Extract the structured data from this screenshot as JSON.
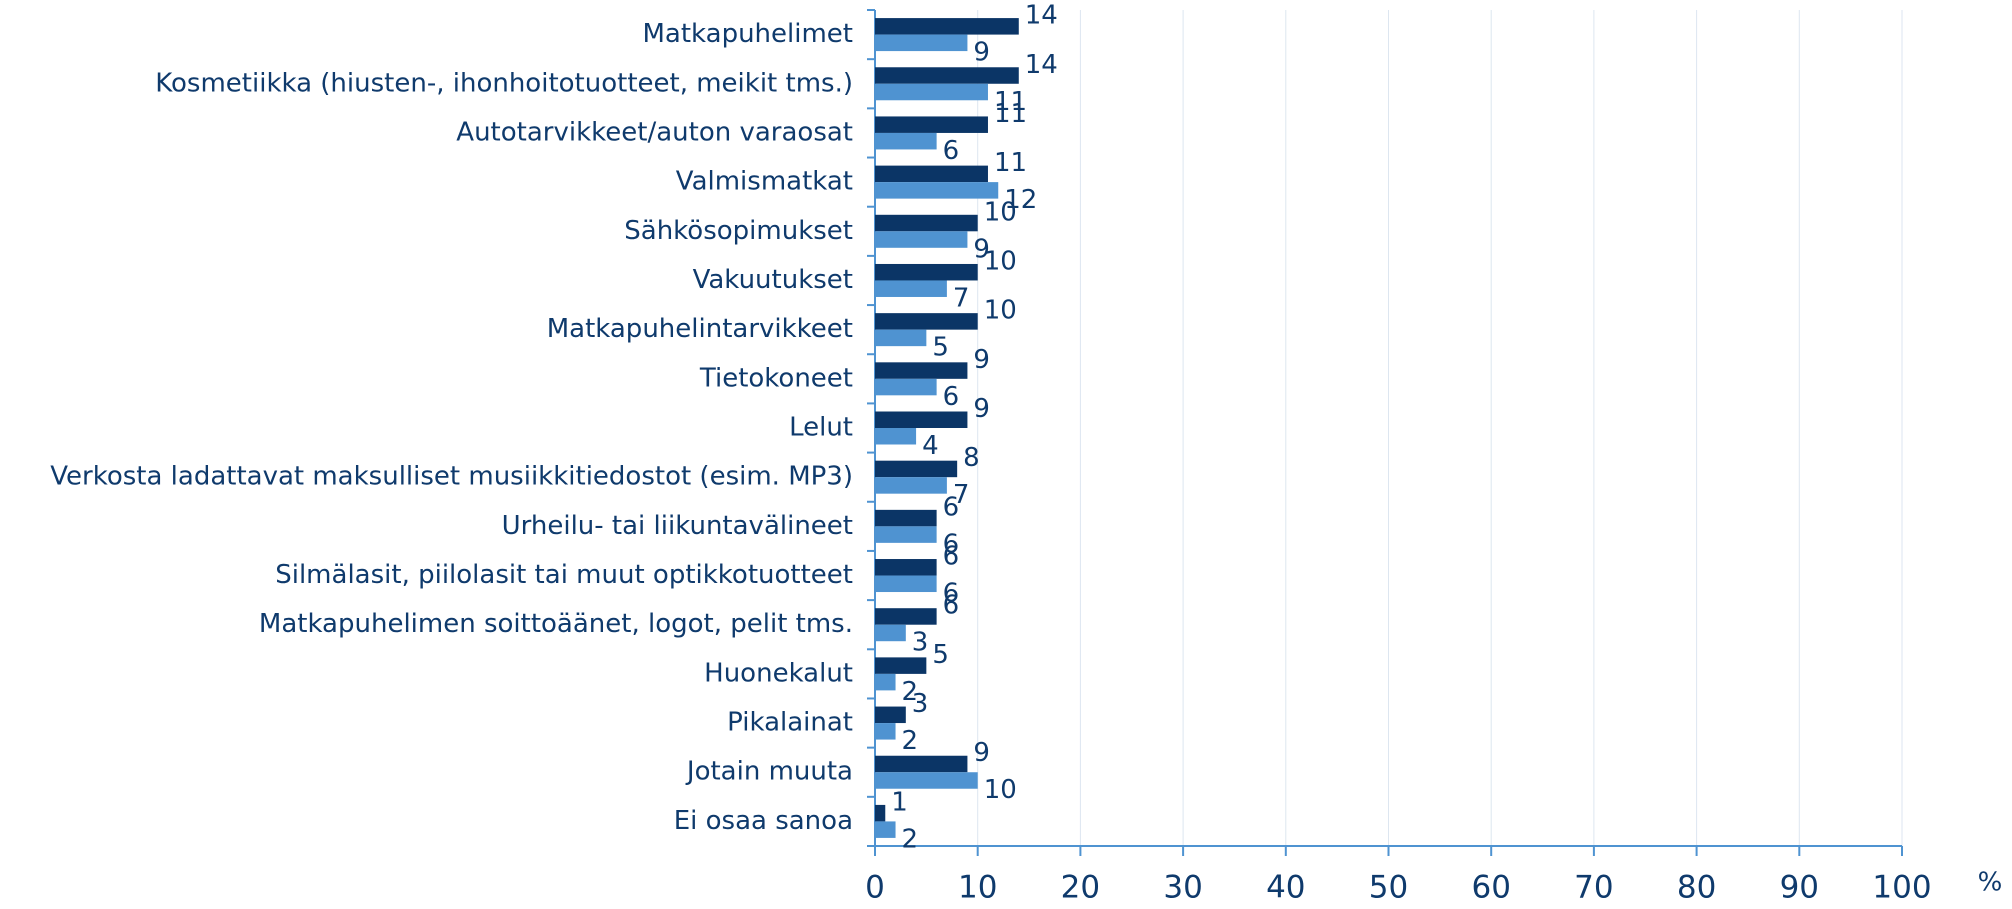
{
  "chart_data": {
    "type": "hbar",
    "categories": [
      "Matkapuhelimet",
      "Kosmetiikka (hiusten-, ihonhoitotuotteet, meikit tms.)",
      "Autotarvikkeet/auton varaosat",
      "Valmismatkat",
      "Sähkösopimukset",
      "Vakuutukset",
      "Matkapuhelintarvikkeet",
      "Tietokoneet",
      "Lelut",
      "Verkosta ladattavat maksulliset musiikkitiedostot (esim. MP3)",
      "Urheilu- tai liikuntavälineet",
      "Silmälasit, piilolasit tai muut optikkotuotteet",
      "Matkapuhelimen soittoäänet, logot, pelit tms.",
      "Huonekalut",
      "Pikalainat",
      "Jotain muuta",
      "Ei osaa sanoa"
    ],
    "series": [
      {
        "color": "#0b3566",
        "values": [
          14,
          14,
          11,
          11,
          10,
          10,
          10,
          9,
          9,
          8,
          6,
          6,
          6,
          5,
          3,
          9,
          1
        ]
      },
      {
        "color": "#4f93d1",
        "values": [
          9,
          11,
          6,
          12,
          9,
          7,
          5,
          6,
          4,
          7,
          6,
          6,
          3,
          2,
          2,
          10,
          2
        ]
      }
    ],
    "xlim": [
      0,
      100
    ],
    "xticks": [
      0,
      10,
      20,
      30,
      40,
      50,
      60,
      70,
      80,
      90,
      100
    ],
    "xlabel": "%",
    "grid": true
  }
}
